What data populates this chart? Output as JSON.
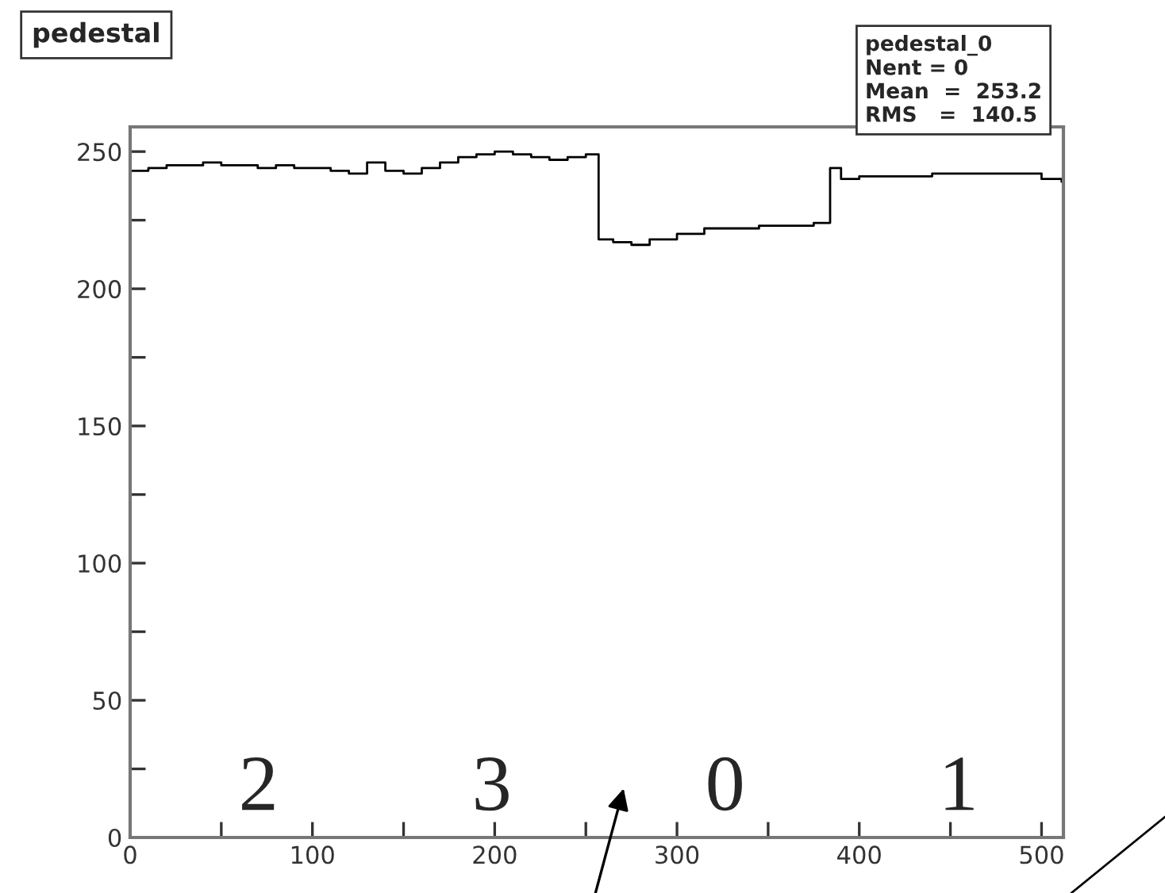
{
  "chart_data": {
    "type": "step",
    "title": "pedestal",
    "x": [
      0,
      10,
      20,
      30,
      40,
      50,
      60,
      70,
      80,
      90,
      100,
      110,
      120,
      130,
      140,
      150,
      160,
      170,
      180,
      190,
      200,
      210,
      220,
      230,
      240,
      250,
      257,
      265,
      275,
      285,
      300,
      315,
      330,
      345,
      360,
      375,
      384,
      390,
      400,
      420,
      440,
      460,
      480,
      500,
      511
    ],
    "series": [
      {
        "color": "#000000",
        "values": [
          243,
          244,
          245,
          245,
          246,
          245,
          245,
          244,
          245,
          244,
          244,
          243,
          242,
          246,
          243,
          242,
          244,
          246,
          248,
          249,
          250,
          249,
          248,
          247,
          248,
          249,
          218,
          217,
          216,
          218,
          220,
          222,
          222,
          223,
          223,
          224,
          244,
          240,
          241,
          241,
          242,
          242,
          242,
          240,
          239
        ]
      }
    ],
    "xlim": [
      0,
      512
    ],
    "ylim": [
      0,
      259
    ],
    "xticks": [
      0,
      {
        "value": 50,
        "label": null
      },
      100,
      {
        "value": 150,
        "label": null
      },
      200,
      {
        "value": 250,
        "label": null
      },
      300,
      {
        "value": 350,
        "label": null
      },
      400,
      {
        "value": 450,
        "label": null
      },
      500
    ],
    "yticks": [
      0,
      {
        "value": 25,
        "label": null
      },
      50,
      {
        "value": 75,
        "label": null
      },
      100,
      {
        "value": 125,
        "label": null
      },
      150,
      {
        "value": 175,
        "label": null
      },
      200,
      {
        "value": 225,
        "label": null
      },
      250
    ],
    "grid": false,
    "legend": false,
    "annotations": [
      "pedestal_0\nNent = 0\nMean  =  253.2\nRMS   =  140.5",
      "2",
      "3",
      "0",
      "1"
    ]
  }
}
